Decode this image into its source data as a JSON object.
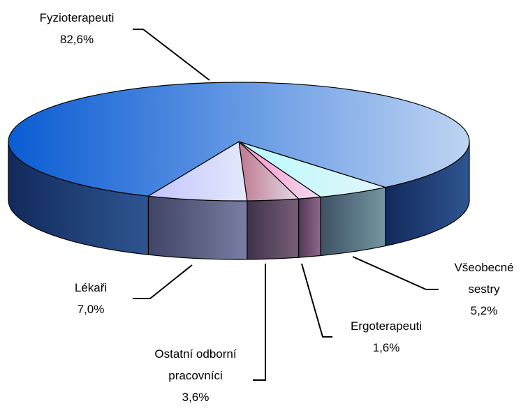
{
  "chart_data": {
    "type": "pie",
    "categories": [
      "Všeobecné sestry",
      "Ergoterapeuti",
      "Ostatní odborní pracovníci",
      "Lékaři",
      "Fyzioterapeuti"
    ],
    "values": [
      5.2,
      1.6,
      3.6,
      7.0,
      82.6
    ],
    "value_labels": [
      "5,2%",
      "1,6%",
      "3,6%",
      "7,0%",
      "82,6%"
    ],
    "colors": [
      "#b8fcfc",
      "#ff8fc8",
      "#c07890",
      "#c4c4ff",
      "#0a5cd4"
    ]
  }
}
